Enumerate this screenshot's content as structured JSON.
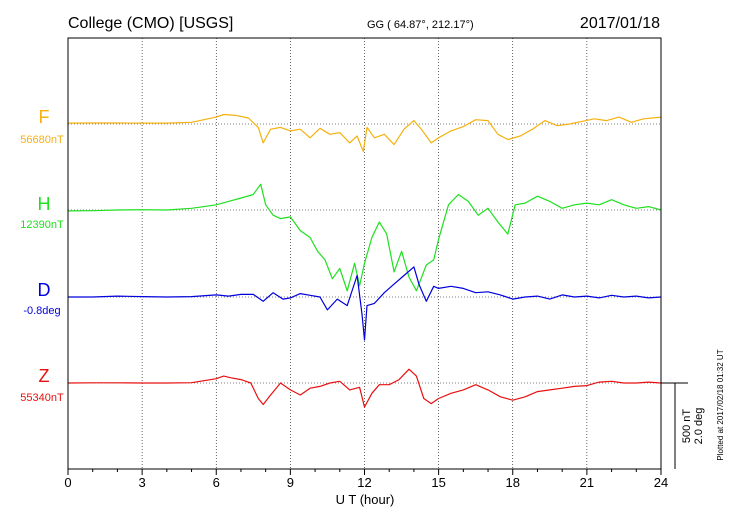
{
  "header": {
    "title": "College (CMO)  [USGS]",
    "coords": "GG ( 64.87°, 212.17°)",
    "date": "2017/01/18"
  },
  "xaxis": {
    "label": "U T (hour)",
    "ticks": [
      "0",
      "3",
      "6",
      "9",
      "12",
      "15",
      "18",
      "21",
      "24"
    ]
  },
  "scale": {
    "line1": "500 nT",
    "line2": "2.0 deg"
  },
  "footer": {
    "plotted": "Plotted at 2017/02/18 01:32 UT"
  },
  "colors": {
    "F": "#f5b10f",
    "H": "#1ee01e",
    "D": "#0000dd",
    "Z": "#e81010",
    "axis": "#000000"
  },
  "chart_data": {
    "type": "line",
    "xlim": [
      0,
      24
    ],
    "grid": true,
    "xlabel": "U T (hour)",
    "series": [
      {
        "name": "F",
        "baseline_label": "56680nT",
        "color": "#f5b10f",
        "x": [
          0,
          1,
          2,
          3,
          4,
          5,
          6,
          6.3,
          6.8,
          7.3,
          7.7,
          7.9,
          8.2,
          8.6,
          9,
          9.4,
          9.8,
          10.2,
          10.6,
          11,
          11.4,
          11.7,
          11.95,
          12.1,
          12.4,
          12.8,
          13.2,
          13.6,
          14,
          14.3,
          14.7,
          15,
          15.5,
          16,
          16.5,
          17,
          17.4,
          17.8,
          18.3,
          18.8,
          19.3,
          19.8,
          20.3,
          20.8,
          21.3,
          21.8,
          22.3,
          22.8,
          23.3,
          24
        ],
        "y": [
          56685,
          56686,
          56686,
          56685,
          56685,
          56690,
          56720,
          56735,
          56730,
          56715,
          56660,
          56570,
          56650,
          56660,
          56640,
          56650,
          56600,
          56655,
          56620,
          56630,
          56570,
          56610,
          56520,
          56660,
          56600,
          56620,
          56560,
          56650,
          56700,
          56650,
          56570,
          56600,
          56640,
          56665,
          56705,
          56700,
          56620,
          56590,
          56610,
          56650,
          56700,
          56670,
          56680,
          56695,
          56710,
          56700,
          56720,
          56690,
          56710,
          56720
        ]
      },
      {
        "name": "H",
        "baseline_label": "12390nT",
        "color": "#1ee01e",
        "x": [
          0,
          1,
          2,
          3,
          4,
          5,
          6,
          6.5,
          7,
          7.5,
          7.8,
          8,
          8.3,
          8.6,
          9,
          9.4,
          9.8,
          10.1,
          10.4,
          10.7,
          11,
          11.3,
          11.6,
          11.8,
          12,
          12.3,
          12.6,
          12.9,
          13.2,
          13.5,
          13.8,
          14.1,
          14.5,
          14.8,
          15,
          15.4,
          15.8,
          16.2,
          16.6,
          17,
          17.4,
          17.8,
          18.1,
          18.5,
          19,
          19.5,
          20,
          20.5,
          21,
          21.5,
          22,
          22.5,
          23,
          23.5,
          24
        ],
        "y": [
          12385,
          12386,
          12390,
          12392,
          12390,
          12400,
          12420,
          12440,
          12460,
          12480,
          12540,
          12420,
          12360,
          12340,
          12350,
          12270,
          12230,
          12150,
          12100,
          11990,
          12050,
          11920,
          12080,
          11950,
          12080,
          12230,
          12320,
          12250,
          12030,
          12150,
          12000,
          11920,
          12070,
          12100,
          12220,
          12420,
          12480,
          12440,
          12360,
          12400,
          12320,
          12250,
          12420,
          12430,
          12470,
          12440,
          12400,
          12420,
          12430,
          12420,
          12450,
          12420,
          12400,
          12410,
          12390
        ]
      },
      {
        "name": "D",
        "baseline_label": "-0.8deg",
        "color": "#0000dd",
        "x": [
          0,
          1,
          2,
          3,
          4,
          5,
          6,
          6.5,
          7,
          7.5,
          7.9,
          8.3,
          8.7,
          9,
          9.4,
          9.8,
          10.2,
          10.5,
          10.9,
          11.3,
          11.7,
          11.9,
          12,
          12.1,
          12.4,
          12.8,
          13.2,
          13.6,
          14,
          14.2,
          14.5,
          14.8,
          15,
          15.5,
          16,
          16.5,
          17,
          17.5,
          18,
          18.5,
          19,
          19.5,
          20,
          20.5,
          21,
          21.5,
          22,
          22.5,
          23,
          23.5,
          24
        ],
        "y": [
          -0.8,
          -0.8,
          -0.78,
          -0.79,
          -0.8,
          -0.79,
          -0.75,
          -0.78,
          -0.74,
          -0.74,
          -0.9,
          -0.7,
          -0.85,
          -0.82,
          -0.72,
          -0.76,
          -0.8,
          -1.1,
          -0.85,
          -1.0,
          -0.3,
          -1.2,
          -1.8,
          -1.0,
          -0.95,
          -0.7,
          -0.5,
          -0.3,
          -0.1,
          -0.5,
          -0.9,
          -0.55,
          -0.6,
          -0.55,
          -0.6,
          -0.7,
          -0.68,
          -0.75,
          -0.85,
          -0.8,
          -0.78,
          -0.85,
          -0.75,
          -0.8,
          -0.78,
          -0.82,
          -0.76,
          -0.8,
          -0.78,
          -0.82,
          -0.8
        ]
      },
      {
        "name": "Z",
        "baseline_label": "55340nT",
        "color": "#e81010",
        "x": [
          0,
          1,
          2,
          3,
          4,
          5,
          6,
          6.3,
          6.6,
          7,
          7.4,
          7.7,
          7.9,
          8.2,
          8.6,
          9,
          9.4,
          9.8,
          10.2,
          10.6,
          11,
          11.4,
          11.8,
          12,
          12.3,
          12.6,
          13,
          13.4,
          13.8,
          14.1,
          14.4,
          14.7,
          15,
          15.5,
          16,
          16.5,
          17,
          17.5,
          18,
          18.5,
          19,
          19.5,
          20,
          20.5,
          21,
          21.5,
          22,
          22.5,
          23,
          23.5,
          24
        ],
        "y": [
          55340,
          55341,
          55341,
          55340,
          55340,
          55342,
          55365,
          55380,
          55370,
          55360,
          55340,
          55250,
          55215,
          55270,
          55340,
          55300,
          55270,
          55310,
          55320,
          55340,
          55350,
          55300,
          55315,
          55200,
          55280,
          55330,
          55330,
          55360,
          55420,
          55380,
          55250,
          55220,
          55250,
          55280,
          55300,
          55330,
          55300,
          55260,
          55240,
          55260,
          55290,
          55300,
          55310,
          55320,
          55325,
          55345,
          55350,
          55340,
          55340,
          55345,
          55340
        ]
      }
    ]
  }
}
